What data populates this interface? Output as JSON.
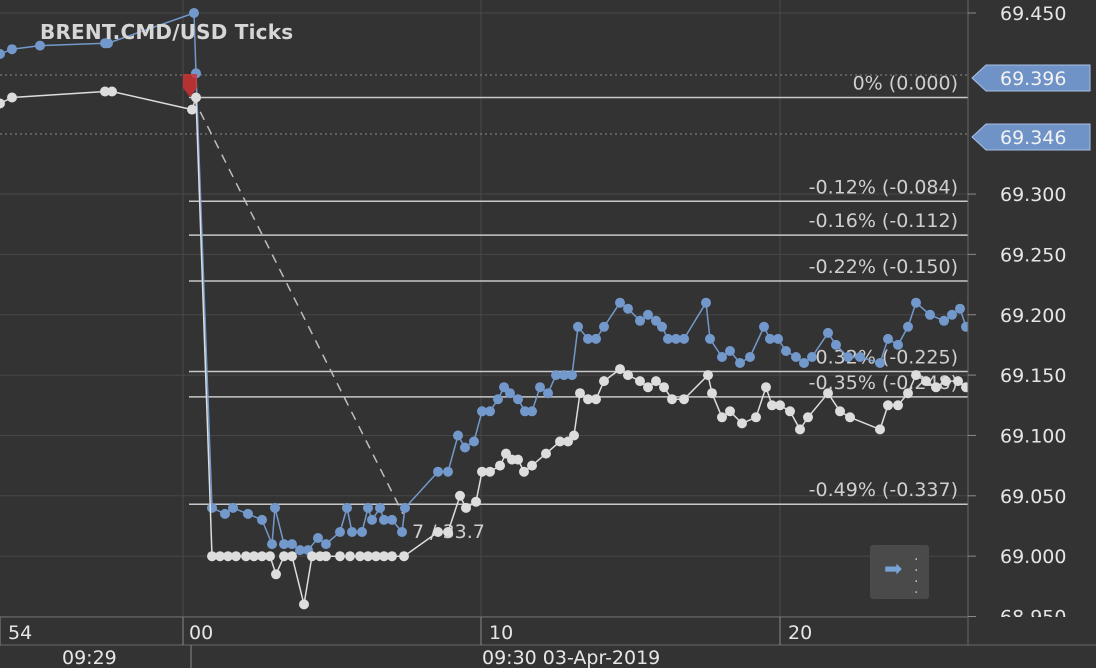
{
  "chart_title": "BRENT.CMD/USD  Ticks",
  "colors": {
    "background": "#333333",
    "ask_series": "#7399cc",
    "bid_series": "#dddddd",
    "grid": "#484848",
    "axis_text": "#e6e6e6",
    "fib_line": "#c8c8c8",
    "marker": "#cc3333"
  },
  "chart_data": {
    "type": "line",
    "title": "BRENT.CMD/USD  Ticks",
    "ylim": [
      68.95,
      69.45
    ],
    "y_ticks": [
      "69.450",
      "69.300",
      "69.250",
      "69.200",
      "69.150",
      "69.100",
      "69.050",
      "69.000",
      "68.950"
    ],
    "x_ticks": [
      "54",
      "00",
      "10",
      "20"
    ],
    "time_labels": [
      "09:29",
      "09:30 03-Apr-2019"
    ],
    "price_tags": [
      "69.396",
      "69.346"
    ],
    "fib_levels": [
      {
        "label": "0% (0.000)",
        "price": 69.38
      },
      {
        "label": "-0.12% (-0.084)",
        "price": 69.294
      },
      {
        "label": "-0.16% (-0.112)",
        "price": 69.266
      },
      {
        "label": "-0.22% (-0.150)",
        "price": 69.228
      },
      {
        "label": "-0.32% (-0.225)",
        "price": 69.153
      },
      {
        "label": "-0.35% (-0.248)",
        "price": 69.132
      },
      {
        "label": "-0.49% (-0.337)",
        "price": 69.043
      }
    ],
    "measure_label": "7 / 33.7",
    "series": [
      {
        "name": "Ask",
        "points": [
          [
            0,
            69.416
          ],
          [
            12,
            69.42
          ],
          [
            40,
            69.423
          ],
          [
            105,
            69.425
          ],
          [
            108,
            69.425
          ],
          [
            194,
            69.45
          ],
          [
            196,
            69.4
          ],
          [
            212,
            69.04
          ],
          [
            225,
            69.035
          ],
          [
            233,
            69.04
          ],
          [
            248,
            69.035
          ],
          [
            262,
            69.03
          ],
          [
            272,
            69.01
          ],
          [
            275,
            69.04
          ],
          [
            284,
            69.01
          ],
          [
            292,
            69.01
          ],
          [
            300,
            69.005
          ],
          [
            308,
            69.005
          ],
          [
            318,
            69.015
          ],
          [
            326,
            69.01
          ],
          [
            340,
            69.02
          ],
          [
            347,
            69.04
          ],
          [
            352,
            69.02
          ],
          [
            362,
            69.02
          ],
          [
            368,
            69.04
          ],
          [
            372,
            69.03
          ],
          [
            380,
            69.04
          ],
          [
            384,
            69.03
          ],
          [
            392,
            69.03
          ],
          [
            402,
            69.02
          ],
          [
            405,
            69.04
          ],
          [
            438,
            69.07
          ],
          [
            448,
            69.07
          ],
          [
            458,
            69.1
          ],
          [
            465,
            69.09
          ],
          [
            474,
            69.095
          ],
          [
            482,
            69.12
          ],
          [
            490,
            69.12
          ],
          [
            498,
            69.13
          ],
          [
            504,
            69.14
          ],
          [
            510,
            69.135
          ],
          [
            518,
            69.13
          ],
          [
            525,
            69.12
          ],
          [
            532,
            69.12
          ],
          [
            540,
            69.14
          ],
          [
            548,
            69.135
          ],
          [
            556,
            69.15
          ],
          [
            564,
            69.15
          ],
          [
            572,
            69.15
          ],
          [
            578,
            69.19
          ],
          [
            588,
            69.18
          ],
          [
            596,
            69.18
          ],
          [
            604,
            69.19
          ],
          [
            620,
            69.21
          ],
          [
            628,
            69.205
          ],
          [
            640,
            69.195
          ],
          [
            648,
            69.2
          ],
          [
            656,
            69.195
          ],
          [
            662,
            69.19
          ],
          [
            668,
            69.18
          ],
          [
            676,
            69.18
          ],
          [
            684,
            69.18
          ],
          [
            706,
            69.21
          ],
          [
            710,
            69.18
          ],
          [
            722,
            69.165
          ],
          [
            730,
            69.17
          ],
          [
            740,
            69.16
          ],
          [
            750,
            69.165
          ],
          [
            764,
            69.19
          ],
          [
            770,
            69.18
          ],
          [
            778,
            69.18
          ],
          [
            786,
            69.17
          ],
          [
            796,
            69.165
          ],
          [
            804,
            69.16
          ],
          [
            812,
            69.165
          ],
          [
            828,
            69.185
          ],
          [
            836,
            69.175
          ],
          [
            848,
            69.165
          ],
          [
            860,
            69.165
          ],
          [
            880,
            69.16
          ],
          [
            888,
            69.18
          ],
          [
            898,
            69.175
          ],
          [
            908,
            69.19
          ],
          [
            916,
            69.21
          ],
          [
            930,
            69.2
          ],
          [
            944,
            69.195
          ],
          [
            952,
            69.2
          ],
          [
            960,
            69.205
          ],
          [
            966,
            69.19
          ]
        ]
      },
      {
        "name": "Bid",
        "points": [
          [
            0,
            69.375
          ],
          [
            12,
            69.38
          ],
          [
            105,
            69.385
          ],
          [
            112,
            69.385
          ],
          [
            192,
            69.37
          ],
          [
            196,
            69.38
          ],
          [
            212,
            69.0
          ],
          [
            220,
            69.0
          ],
          [
            228,
            69.0
          ],
          [
            236,
            69.0
          ],
          [
            246,
            69.0
          ],
          [
            254,
            69.0
          ],
          [
            262,
            69.0
          ],
          [
            270,
            69.0
          ],
          [
            276,
            68.985
          ],
          [
            284,
            69.0
          ],
          [
            292,
            69.0
          ],
          [
            304,
            68.96
          ],
          [
            312,
            69.0
          ],
          [
            320,
            69.0
          ],
          [
            326,
            69.0
          ],
          [
            340,
            69.0
          ],
          [
            350,
            69.0
          ],
          [
            360,
            69.0
          ],
          [
            368,
            69.0
          ],
          [
            376,
            69.0
          ],
          [
            384,
            69.0
          ],
          [
            392,
            69.0
          ],
          [
            404,
            69.0
          ],
          [
            438,
            69.02
          ],
          [
            448,
            69.02
          ],
          [
            460,
            69.05
          ],
          [
            466,
            69.04
          ],
          [
            476,
            69.045
          ],
          [
            482,
            69.07
          ],
          [
            490,
            69.07
          ],
          [
            500,
            69.075
          ],
          [
            506,
            69.085
          ],
          [
            512,
            69.08
          ],
          [
            518,
            69.08
          ],
          [
            524,
            69.07
          ],
          [
            532,
            69.075
          ],
          [
            546,
            69.085
          ],
          [
            560,
            69.095
          ],
          [
            568,
            69.095
          ],
          [
            574,
            69.1
          ],
          [
            580,
            69.135
          ],
          [
            588,
            69.13
          ],
          [
            596,
            69.13
          ],
          [
            604,
            69.145
          ],
          [
            620,
            69.155
          ],
          [
            628,
            69.15
          ],
          [
            640,
            69.145
          ],
          [
            648,
            69.14
          ],
          [
            656,
            69.145
          ],
          [
            664,
            69.14
          ],
          [
            672,
            69.13
          ],
          [
            684,
            69.13
          ],
          [
            708,
            69.15
          ],
          [
            712,
            69.135
          ],
          [
            722,
            69.115
          ],
          [
            730,
            69.12
          ],
          [
            742,
            69.11
          ],
          [
            756,
            69.115
          ],
          [
            766,
            69.14
          ],
          [
            772,
            69.125
          ],
          [
            780,
            69.125
          ],
          [
            790,
            69.12
          ],
          [
            800,
            69.105
          ],
          [
            808,
            69.115
          ],
          [
            828,
            69.135
          ],
          [
            840,
            69.12
          ],
          [
            850,
            69.115
          ],
          [
            880,
            69.105
          ],
          [
            888,
            69.125
          ],
          [
            898,
            69.125
          ],
          [
            908,
            69.135
          ],
          [
            916,
            69.15
          ],
          [
            926,
            69.145
          ],
          [
            936,
            69.14
          ],
          [
            946,
            69.145
          ],
          [
            958,
            69.145
          ],
          [
            966,
            69.14
          ]
        ]
      }
    ]
  },
  "scroll_button": {
    "icon": "arrow-right-icon"
  }
}
